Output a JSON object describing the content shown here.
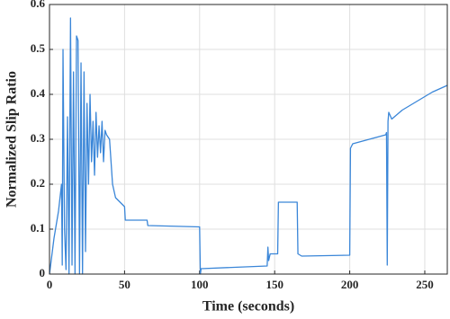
{
  "chart_data": {
    "type": "line",
    "xlabel": "Time (seconds)",
    "ylabel": "Normalized Slip Ratio",
    "x": [
      0,
      3,
      6,
      8,
      8.5,
      9,
      10,
      11,
      12,
      13,
      14,
      15,
      16,
      17,
      18,
      19,
      20,
      21,
      22,
      23,
      24,
      25,
      26,
      27,
      28,
      29,
      30,
      31,
      32,
      33,
      34,
      35,
      36,
      37,
      38,
      40,
      42,
      44,
      47,
      50,
      50.5,
      65,
      65.5,
      100,
      100.5,
      101,
      145,
      145.5,
      146,
      147,
      152,
      152.5,
      165,
      165.5,
      168,
      200,
      200.5,
      202,
      224,
      224.5,
      225,
      225.5,
      226,
      228,
      235,
      245,
      255,
      265
    ],
    "series": [
      {
        "color": "#3a86d8",
        "values": [
          0,
          0.08,
          0.14,
          0.2,
          0.02,
          0.5,
          0.1,
          0.01,
          0.35,
          0.0,
          0.57,
          0.02,
          0.45,
          0.0,
          0.53,
          0.52,
          0.0,
          0.47,
          0.0,
          0.45,
          0.05,
          0.38,
          0.2,
          0.4,
          0.25,
          0.34,
          0.22,
          0.36,
          0.26,
          0.33,
          0.27,
          0.34,
          0.25,
          0.32,
          0.31,
          0.3,
          0.2,
          0.17,
          0.16,
          0.15,
          0.12,
          0.12,
          0.108,
          0.105,
          0,
          0.012,
          0.018,
          0.06,
          0.03,
          0.045,
          0.045,
          0.16,
          0.16,
          0.045,
          0.04,
          0.042,
          0.28,
          0.29,
          0.31,
          0.315,
          0.02,
          0.34,
          0.36,
          0.345,
          0.365,
          0.385,
          0.405,
          0.42
        ]
      }
    ],
    "xlim": [
      0,
      265
    ],
    "xticks": [
      0,
      50,
      100,
      150,
      200,
      250
    ],
    "ylim": [
      0,
      0.6
    ],
    "yticks": [
      0,
      0.1,
      0.2,
      0.3,
      0.4,
      0.5,
      0.6
    ],
    "grid": true
  }
}
